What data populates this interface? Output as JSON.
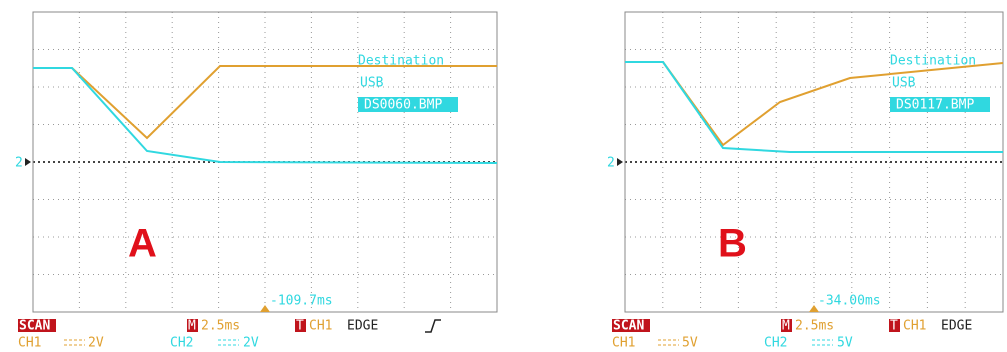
{
  "panels": [
    {
      "label": "A",
      "channel_marker": "2",
      "destination": "Destination",
      "usb": "USB",
      "file": "DS0060.BMP",
      "trigger_offset": "-109.7ms",
      "mode": "SCAN",
      "timebase_marker": "M",
      "timebase": "2.5ms",
      "trigger_marker": "T",
      "trigger_source": "CH1",
      "trigger_type": "EDGE",
      "ch1": "CH1",
      "ch1_scale": "2V",
      "ch2": "CH2",
      "ch2_scale": "2V"
    },
    {
      "label": "B",
      "channel_marker": "2",
      "destination": "Destination",
      "usb": "USB",
      "file": "DS0117.BMP",
      "trigger_offset": "-34.00ms",
      "mode": "SCAN",
      "timebase_marker": "M",
      "timebase": "2.5ms",
      "trigger_marker": "T",
      "trigger_source": "CH1",
      "trigger_type": "EDGE",
      "ch1": "CH1",
      "ch1_scale": "5V",
      "ch2": "CH2",
      "ch2_scale": "5V"
    }
  ]
}
